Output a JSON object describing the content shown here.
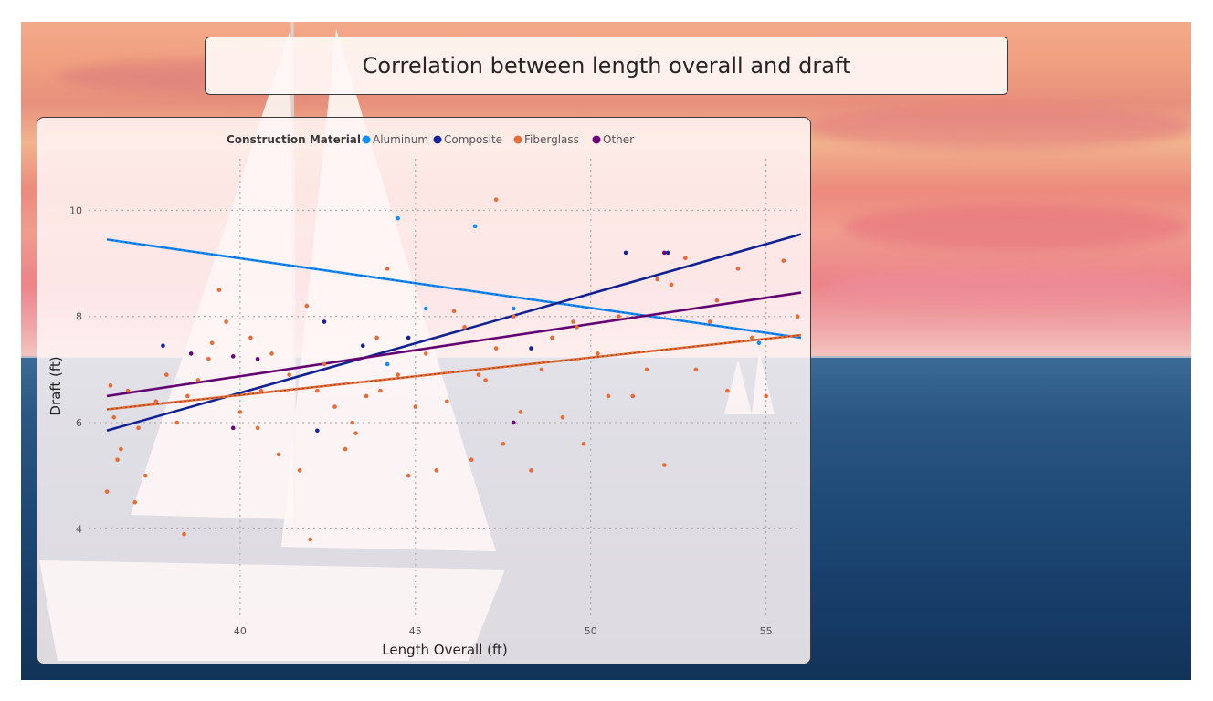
{
  "report": {
    "title": "Correlation between length overall and draft"
  },
  "chart_data": {
    "type": "scatter",
    "title": "",
    "xlabel": "Length Overall (ft)",
    "ylabel": "Draft (ft)",
    "xlim": [
      35,
      56
    ],
    "ylim": [
      2.2,
      11.4
    ],
    "x_ticks": [
      40,
      45,
      50,
      55
    ],
    "y_ticks": [
      4,
      6,
      8,
      10
    ],
    "grid": true,
    "legend": {
      "title": "Construction Material",
      "placement": "top-left"
    },
    "series": [
      {
        "name": "Aluminum",
        "color": "#118DFF",
        "points": [
          [
            44.5,
            9.85
          ],
          [
            46.7,
            9.7
          ],
          [
            45.3,
            8.15
          ],
          [
            47.8,
            8.15
          ],
          [
            54.8,
            7.5
          ],
          [
            44.2,
            7.1
          ]
        ],
        "trend": [
          [
            36.2,
            9.45
          ],
          [
            56.0,
            7.6
          ]
        ]
      },
      {
        "name": "Composite",
        "color": "#12239E",
        "points": [
          [
            37.8,
            7.45
          ],
          [
            42.4,
            7.9
          ],
          [
            51.0,
            9.2
          ],
          [
            52.2,
            9.2
          ],
          [
            43.5,
            7.45
          ],
          [
            48.3,
            7.4
          ],
          [
            42.2,
            5.85
          ],
          [
            44.8,
            7.6
          ]
        ],
        "trend": [
          [
            36.2,
            5.85
          ],
          [
            56.0,
            9.55
          ]
        ]
      },
      {
        "name": "Fiberglass",
        "color": "#E66C37",
        "points": [
          [
            36.3,
            6.7
          ],
          [
            36.4,
            6.1
          ],
          [
            36.5,
            5.3
          ],
          [
            36.6,
            5.5
          ],
          [
            36.2,
            4.7
          ],
          [
            36.8,
            6.6
          ],
          [
            37.1,
            5.9
          ],
          [
            37.3,
            5.0
          ],
          [
            37.6,
            6.4
          ],
          [
            37.9,
            6.9
          ],
          [
            38.2,
            6.0
          ],
          [
            38.5,
            6.5
          ],
          [
            38.8,
            6.8
          ],
          [
            39.1,
            7.2
          ],
          [
            39.4,
            8.5
          ],
          [
            39.6,
            7.9
          ],
          [
            40.0,
            6.2
          ],
          [
            40.3,
            7.6
          ],
          [
            40.6,
            6.6
          ],
          [
            40.9,
            7.3
          ],
          [
            41.1,
            5.4
          ],
          [
            41.4,
            6.9
          ],
          [
            41.7,
            5.1
          ],
          [
            41.9,
            8.2
          ],
          [
            42.2,
            6.6
          ],
          [
            42.4,
            7.1
          ],
          [
            42.7,
            6.3
          ],
          [
            43.0,
            5.5
          ],
          [
            43.3,
            5.8
          ],
          [
            43.6,
            6.5
          ],
          [
            43.9,
            7.6
          ],
          [
            44.2,
            8.9
          ],
          [
            44.5,
            6.9
          ],
          [
            44.8,
            5.0
          ],
          [
            45.0,
            6.3
          ],
          [
            45.3,
            7.3
          ],
          [
            45.6,
            5.1
          ],
          [
            45.9,
            6.4
          ],
          [
            46.1,
            8.1
          ],
          [
            46.4,
            7.8
          ],
          [
            46.6,
            5.3
          ],
          [
            47.0,
            6.8
          ],
          [
            47.3,
            7.4
          ],
          [
            47.5,
            5.6
          ],
          [
            47.8,
            8.0
          ],
          [
            48.0,
            6.2
          ],
          [
            48.3,
            5.1
          ],
          [
            48.6,
            7.0
          ],
          [
            48.9,
            7.6
          ],
          [
            49.2,
            6.1
          ],
          [
            49.5,
            7.9
          ],
          [
            49.8,
            5.6
          ],
          [
            50.2,
            7.3
          ],
          [
            50.5,
            6.5
          ],
          [
            50.8,
            8.0
          ],
          [
            51.2,
            6.5
          ],
          [
            51.6,
            7.0
          ],
          [
            52.1,
            5.2
          ],
          [
            52.3,
            8.6
          ],
          [
            52.7,
            9.1
          ],
          [
            53.0,
            7.0
          ],
          [
            53.4,
            7.9
          ],
          [
            53.9,
            6.6
          ],
          [
            54.2,
            8.9
          ],
          [
            54.6,
            7.6
          ],
          [
            55.0,
            6.5
          ],
          [
            55.5,
            9.05
          ],
          [
            55.9,
            8.0
          ],
          [
            47.3,
            10.2
          ],
          [
            38.4,
            3.9
          ],
          [
            42.0,
            3.8
          ],
          [
            39.2,
            7.5
          ],
          [
            43.2,
            6.0
          ],
          [
            37.0,
            4.5
          ],
          [
            40.5,
            5.9
          ],
          [
            44.0,
            6.6
          ],
          [
            46.8,
            6.9
          ],
          [
            49.6,
            7.8
          ],
          [
            51.9,
            8.7
          ],
          [
            53.6,
            8.3
          ]
        ],
        "trend": [
          [
            36.2,
            6.25
          ],
          [
            56.0,
            7.65
          ]
        ]
      },
      {
        "name": "Other",
        "color": "#6B007B",
        "points": [
          [
            38.6,
            7.3
          ],
          [
            39.8,
            7.25
          ],
          [
            40.5,
            7.2
          ],
          [
            39.8,
            5.9
          ],
          [
            47.8,
            6.0
          ],
          [
            52.1,
            9.2
          ]
        ],
        "trend": [
          [
            36.2,
            6.5
          ],
          [
            56.0,
            8.45
          ]
        ]
      }
    ]
  }
}
